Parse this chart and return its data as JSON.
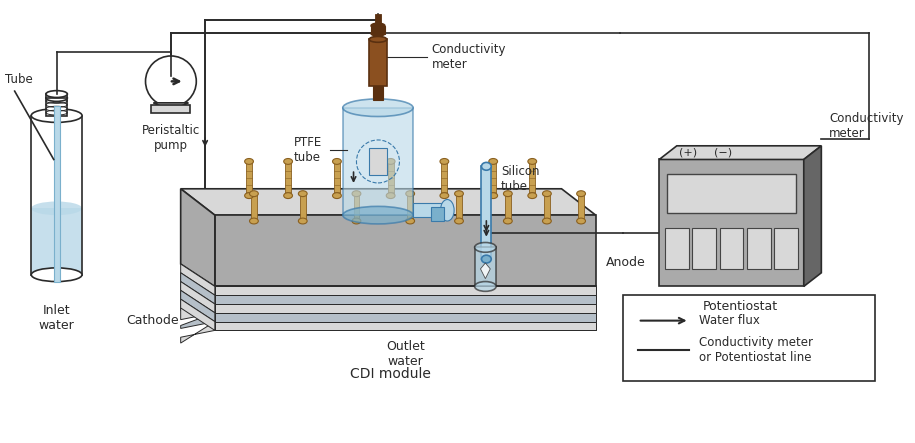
{
  "bg_color": "#ffffff",
  "lc": "#2a2a2a",
  "light_blue": "#b8d8e8",
  "mid_blue": "#7ab0cc",
  "dark_blue": "#3a7aaa",
  "light_gray": "#d8d8d8",
  "mid_gray": "#aaaaaa",
  "dark_gray": "#666666",
  "darker_gray": "#444444",
  "brown": "#8B5020",
  "dark_brown": "#5a3010",
  "tan": "#c8a050",
  "dark_tan": "#8a6020",
  "white": "#ffffff",
  "labels": {
    "tube": "Tube",
    "peristaltic_pump": "Peristaltic\npump",
    "inlet_water": "Inlet\nwater",
    "ptfe_tube": "PTFE\ntube",
    "conductivity_meter_top": "Conductivity\nmeter",
    "silicon_tube": "Silicon\ntube",
    "conductivity_meter_right": "Conductivity\nmeter",
    "potentiostat": "Potentiostat",
    "cathode": "Cathode",
    "anode": "Anode",
    "outlet_water": "Outlet\nwater",
    "cdi_module": "CDI module",
    "legend_water_flux": "Water flux",
    "legend_line": "Conductivity meter\nor Potentiostat line",
    "plus": "(+)",
    "minus": "(−)"
  }
}
